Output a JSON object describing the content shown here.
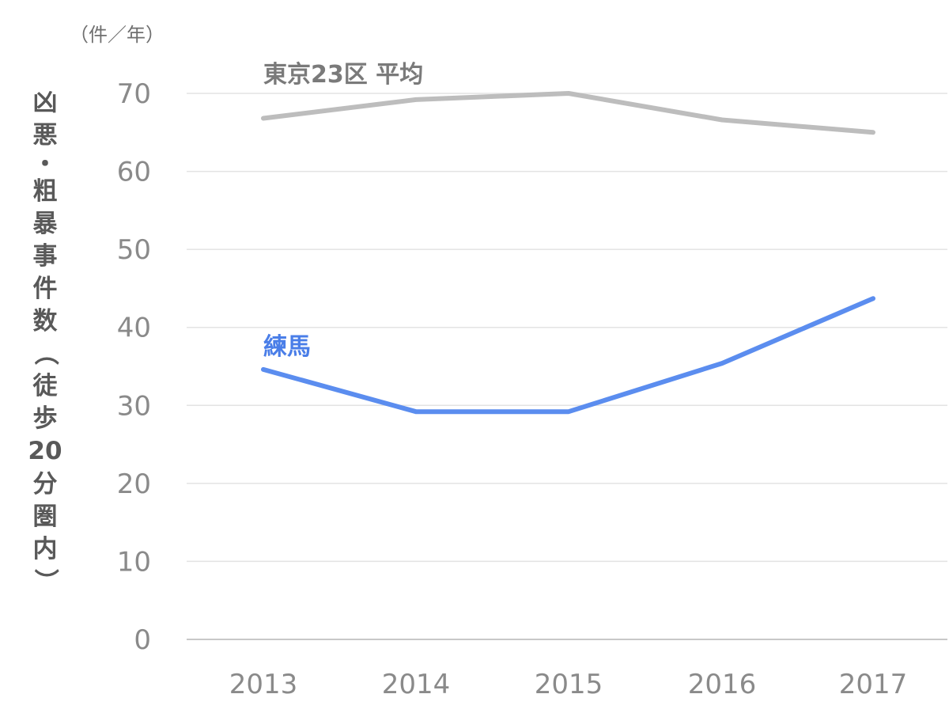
{
  "chart_data": {
    "type": "line",
    "unit_label": "（件／年）",
    "ylabel": "凶悪・粗暴事件数（徒歩20分圏内）",
    "categories": [
      "2013",
      "2014",
      "2015",
      "2016",
      "2017"
    ],
    "ylim": [
      0,
      70
    ],
    "yticks": [
      0,
      10,
      20,
      30,
      40,
      50,
      60,
      70
    ],
    "grid": true,
    "series": [
      {
        "name": "東京23区 平均",
        "color": "#bdbdbd",
        "values": [
          66.8,
          69.2,
          70.0,
          66.6,
          65.0
        ]
      },
      {
        "name": "練馬",
        "color": "#5b8def",
        "label_color": "#4a7ee8",
        "values": [
          34.6,
          29.2,
          29.2,
          35.4,
          43.7
        ]
      }
    ]
  }
}
